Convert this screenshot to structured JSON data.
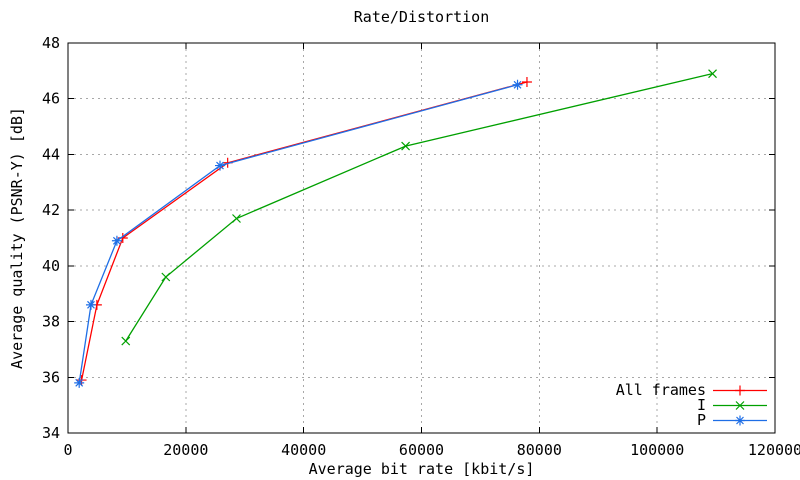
{
  "chart_data": {
    "type": "line",
    "title": "Rate/Distortion",
    "xlabel": "Average bit rate [kbit/s]",
    "ylabel": "Average quality (PSNR-Y) [dB]",
    "xlim": [
      0,
      120000
    ],
    "ylim": [
      34,
      48
    ],
    "xticks": [
      0,
      20000,
      40000,
      60000,
      80000,
      100000,
      120000
    ],
    "xtick_labels": [
      "0",
      "20000",
      "40000",
      "60000",
      "80000",
      "100000",
      "120000"
    ],
    "yticks": [
      34,
      36,
      38,
      40,
      42,
      44,
      46,
      48
    ],
    "ytick_labels": [
      "34",
      "36",
      "38",
      "40",
      "42",
      "44",
      "46",
      "48"
    ],
    "grid": true,
    "legend_position": "inside-bottom-right",
    "series": [
      {
        "name": "All frames",
        "color": "#ff0000",
        "marker": "plus",
        "points": [
          [
            2300,
            35.9
          ],
          [
            4900,
            38.6
          ],
          [
            9300,
            41.0
          ],
          [
            27100,
            43.7
          ],
          [
            77900,
            46.6
          ]
        ]
      },
      {
        "name": "I",
        "color": "#00a000",
        "marker": "x",
        "points": [
          [
            9800,
            37.3
          ],
          [
            16600,
            39.6
          ],
          [
            28600,
            41.7
          ],
          [
            57300,
            44.3
          ],
          [
            109400,
            46.9
          ]
        ]
      },
      {
        "name": "P",
        "color": "#1e6ee6",
        "marker": "asterisk",
        "points": [
          [
            1900,
            35.8
          ],
          [
            3900,
            38.6
          ],
          [
            8300,
            40.9
          ],
          [
            25800,
            43.6
          ],
          [
            76300,
            46.5
          ]
        ]
      }
    ],
    "colors": {
      "background": "#ffffff",
      "axis": "#000000",
      "grid": "#a8a8a8",
      "text": "#000000"
    }
  }
}
